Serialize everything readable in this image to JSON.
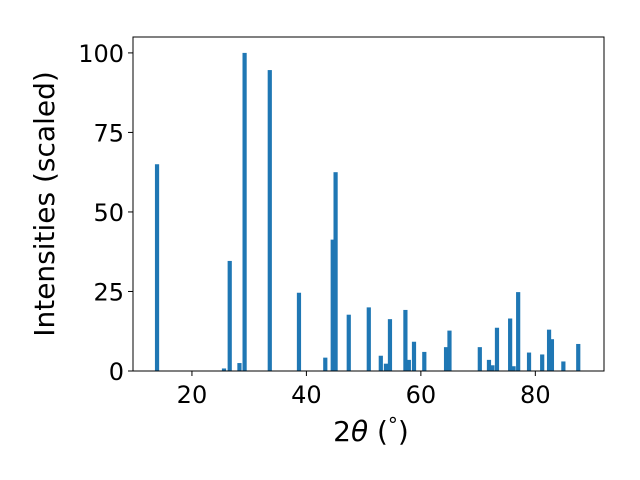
{
  "chart_data": {
    "type": "bar",
    "xlabel_parts": [
      "2",
      "θ",
      " (",
      "°",
      ")"
    ],
    "ylabel": "Intensities (scaled)",
    "xlim": [
      9.7,
      92.0
    ],
    "ylim": [
      0,
      105
    ],
    "x_ticks": [
      20,
      40,
      60,
      80
    ],
    "y_ticks": [
      0,
      25,
      50,
      75,
      100
    ],
    "bar_color": "#1f77b4",
    "grid": false,
    "bars": [
      {
        "x": 13.9,
        "y": 65.0
      },
      {
        "x": 25.6,
        "y": 0.8
      },
      {
        "x": 26.6,
        "y": 34.6
      },
      {
        "x": 28.3,
        "y": 2.5
      },
      {
        "x": 29.2,
        "y": 100.0
      },
      {
        "x": 33.6,
        "y": 94.6
      },
      {
        "x": 38.7,
        "y": 24.6
      },
      {
        "x": 43.3,
        "y": 4.2
      },
      {
        "x": 44.6,
        "y": 41.3
      },
      {
        "x": 45.1,
        "y": 62.5
      },
      {
        "x": 47.4,
        "y": 17.7
      },
      {
        "x": 50.9,
        "y": 20.0
      },
      {
        "x": 53.0,
        "y": 4.8
      },
      {
        "x": 53.9,
        "y": 2.3
      },
      {
        "x": 54.6,
        "y": 16.3
      },
      {
        "x": 57.3,
        "y": 19.2
      },
      {
        "x": 57.9,
        "y": 3.5
      },
      {
        "x": 58.8,
        "y": 9.2
      },
      {
        "x": 60.6,
        "y": 6.0
      },
      {
        "x": 64.4,
        "y": 7.5
      },
      {
        "x": 65.0,
        "y": 12.7
      },
      {
        "x": 70.3,
        "y": 7.5
      },
      {
        "x": 71.9,
        "y": 3.5
      },
      {
        "x": 72.5,
        "y": 1.8
      },
      {
        "x": 73.3,
        "y": 13.6
      },
      {
        "x": 75.6,
        "y": 16.5
      },
      {
        "x": 76.2,
        "y": 1.5
      },
      {
        "x": 77.0,
        "y": 24.8
      },
      {
        "x": 78.9,
        "y": 5.8
      },
      {
        "x": 81.2,
        "y": 5.2
      },
      {
        "x": 82.4,
        "y": 13.0
      },
      {
        "x": 82.9,
        "y": 10.0
      },
      {
        "x": 84.9,
        "y": 3.0
      },
      {
        "x": 87.5,
        "y": 8.5
      }
    ]
  }
}
